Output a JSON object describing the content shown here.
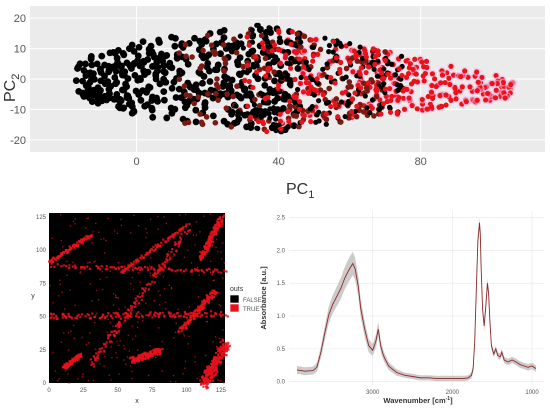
{
  "colors": {
    "panel_bg": "#ebebeb",
    "grid": "#ffffff",
    "false_color": "#000000",
    "true_color": "#e8121b",
    "mid_color": "#7a1a12",
    "halo_color": "#f6b8e2",
    "ribbon": "#c8c4c4",
    "mean_line": "#8b2a2a"
  },
  "chart_data": [
    {
      "type": "scatter",
      "xlabel": "PC",
      "xlabel_sub": "1",
      "ylabel": "PC",
      "ylabel_sub": "2",
      "xlim": [
        -30,
        115
      ],
      "ylim": [
        -24,
        24
      ],
      "x_ticks": [
        0,
        40,
        80
      ],
      "y_ticks": [
        20,
        10,
        0,
        -10,
        -20
      ],
      "grid": true,
      "series": [
        {
          "color_key": "false_color",
          "region": {
            "x": [
              -17,
              45
            ],
            "y_center": 0,
            "y_halfspan": 16
          }
        },
        {
          "color_key": "mid_color",
          "region": {
            "x": [
              10,
              70
            ],
            "y_center": 2,
            "y_halfspan": 18
          }
        },
        {
          "color_key": "true_color",
          "region": {
            "x": [
              35,
              108
            ],
            "y_center": -2,
            "y_halfspan": 16
          }
        }
      ]
    },
    {
      "type": "heatmap",
      "xlabel": "x",
      "ylabel": "y",
      "xlim": [
        0,
        128
      ],
      "ylim": [
        0,
        128
      ],
      "x_ticks": [
        0,
        25,
        50,
        75,
        100,
        125
      ],
      "y_ticks": [
        0,
        25,
        50,
        75,
        100,
        125
      ],
      "legend": {
        "title": "outs",
        "placement": "right",
        "entries": [
          "FALSE",
          "TRUE"
        ]
      },
      "true_features": [
        {
          "shape": "band",
          "from": [
            0,
            51
          ],
          "to": [
            128,
            53
          ],
          "width": 3
        },
        {
          "shape": "band",
          "from": [
            0,
            89
          ],
          "to": [
            128,
            85
          ],
          "width": 2
        },
        {
          "shape": "band",
          "from": [
            30,
            15
          ],
          "to": [
            100,
            115
          ],
          "width": 3
        },
        {
          "shape": "band",
          "from": [
            52,
            84
          ],
          "to": [
            100,
            120
          ],
          "width": 2
        },
        {
          "shape": "band",
          "from": [
            112,
            0
          ],
          "to": [
            128,
            30
          ],
          "width": 5
        },
        {
          "shape": "band",
          "from": [
            0,
            92
          ],
          "to": [
            30,
            112
          ],
          "width": 2
        },
        {
          "shape": "band",
          "from": [
            110,
            95
          ],
          "to": [
            125,
            125
          ],
          "width": 3
        },
        {
          "shape": "band",
          "from": [
            10,
            12
          ],
          "to": [
            22,
            22
          ],
          "width": 2
        },
        {
          "shape": "band",
          "from": [
            60,
            18
          ],
          "to": [
            80,
            25
          ],
          "width": 3
        },
        {
          "shape": "band",
          "from": [
            95,
            40
          ],
          "to": [
            120,
            70
          ],
          "width": 3
        }
      ]
    },
    {
      "type": "line",
      "xlabel": "Wavenumber [cm",
      "xlabel_sup": "-1",
      "xlabel_end": "]",
      "ylabel": "Absorbance [a.u.]",
      "xlim": [
        4050,
        850
      ],
      "ylim": [
        -0.05,
        2.6
      ],
      "x_ticks": [
        3000,
        2000,
        1000
      ],
      "y_ticks": [
        0.0,
        0.5,
        1.0,
        1.5,
        2.0,
        2.5
      ],
      "grid": true,
      "x": [
        3950,
        3850,
        3750,
        3700,
        3650,
        3600,
        3550,
        3500,
        3450,
        3400,
        3350,
        3300,
        3250,
        3220,
        3180,
        3150,
        3100,
        3050,
        3000,
        2960,
        2930,
        2900,
        2870,
        2850,
        2800,
        2700,
        2600,
        2500,
        2400,
        2300,
        2200,
        2100,
        2000,
        1900,
        1850,
        1800,
        1760,
        1740,
        1720,
        1700,
        1680,
        1660,
        1650,
        1640,
        1620,
        1600,
        1580,
        1560,
        1545,
        1530,
        1510,
        1480,
        1455,
        1430,
        1400,
        1380,
        1350,
        1300,
        1250,
        1200,
        1150,
        1100,
        1050,
        1000,
        950
      ],
      "series": [
        {
          "name": "mean",
          "values": [
            0.18,
            0.16,
            0.17,
            0.22,
            0.45,
            0.75,
            1.02,
            1.18,
            1.3,
            1.42,
            1.58,
            1.7,
            1.8,
            1.72,
            1.45,
            1.12,
            0.8,
            0.55,
            0.48,
            0.62,
            0.8,
            0.55,
            0.42,
            0.36,
            0.24,
            0.14,
            0.1,
            0.08,
            0.06,
            0.06,
            0.05,
            0.05,
            0.05,
            0.05,
            0.05,
            0.06,
            0.1,
            0.2,
            0.6,
            1.4,
            2.15,
            2.42,
            2.25,
            1.8,
            1.1,
            0.85,
            1.15,
            1.5,
            1.35,
            0.95,
            0.55,
            0.42,
            0.5,
            0.4,
            0.38,
            0.45,
            0.33,
            0.3,
            0.33,
            0.3,
            0.26,
            0.24,
            0.22,
            0.24,
            0.2
          ]
        },
        {
          "name": "band",
          "values": [
            0.06,
            0.06,
            0.06,
            0.07,
            0.09,
            0.11,
            0.13,
            0.14,
            0.15,
            0.16,
            0.17,
            0.18,
            0.18,
            0.17,
            0.16,
            0.14,
            0.12,
            0.1,
            0.09,
            0.1,
            0.11,
            0.09,
            0.08,
            0.07,
            0.06,
            0.05,
            0.04,
            0.04,
            0.04,
            0.04,
            0.04,
            0.04,
            0.04,
            0.04,
            0.04,
            0.04,
            0.05,
            0.06,
            0.08,
            0.1,
            0.1,
            0.08,
            0.08,
            0.08,
            0.08,
            0.08,
            0.08,
            0.08,
            0.08,
            0.07,
            0.06,
            0.05,
            0.05,
            0.05,
            0.05,
            0.05,
            0.05,
            0.05,
            0.05,
            0.05,
            0.05,
            0.05,
            0.05,
            0.05,
            0.05
          ]
        }
      ]
    }
  ]
}
